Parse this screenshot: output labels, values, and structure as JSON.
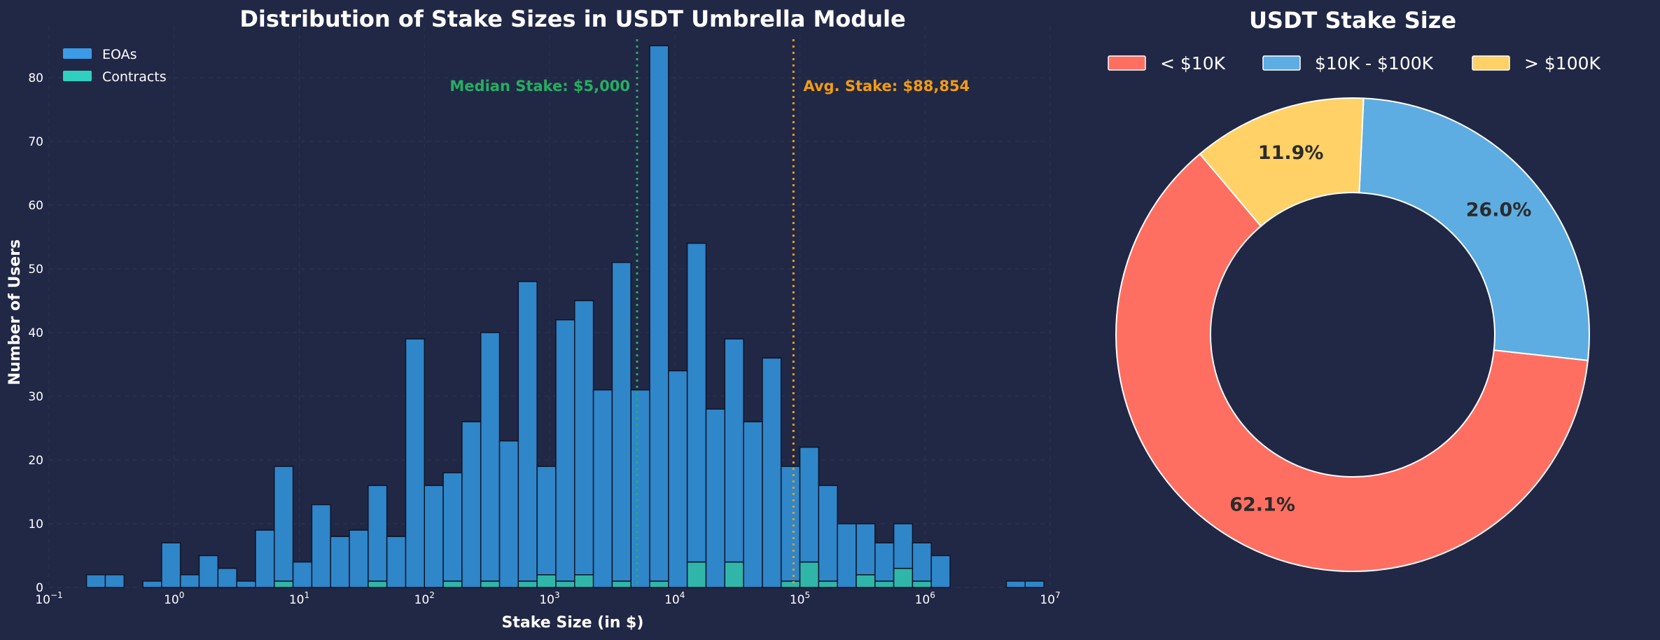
{
  "colors": {
    "background": "#212846",
    "eoa": "#2f86c9",
    "contract": "#2fb6a9",
    "bar_edge": "#0f1428",
    "median_line": "#27ae60",
    "avg_line": "#f39c12",
    "under_10k": "#ff6f61",
    "between_10k_100k": "#5dade2",
    "over_100k": "#ffd166",
    "pie_edge": "#ffffff"
  },
  "chart_data": [
    {
      "type": "bar",
      "title": "Distribution of Stake Sizes in USDT Umbrella Module",
      "xlabel": "Stake Size (in $)",
      "ylabel": "Number of Users",
      "x_scale": "log",
      "xlim": [
        0.1,
        10000000
      ],
      "ylim": [
        0,
        88
      ],
      "yticks": [
        0,
        10,
        20,
        30,
        40,
        50,
        60,
        70,
        80
      ],
      "xticks": [
        {
          "base": "10",
          "exp": "−1",
          "value": 0.1
        },
        {
          "base": "10",
          "exp": "0",
          "value": 1
        },
        {
          "base": "10",
          "exp": "1",
          "value": 10
        },
        {
          "base": "10",
          "exp": "2",
          "value": 100
        },
        {
          "base": "10",
          "exp": "3",
          "value": 1000
        },
        {
          "base": "10",
          "exp": "4",
          "value": 10000
        },
        {
          "base": "10",
          "exp": "5",
          "value": 100000
        },
        {
          "base": "10",
          "exp": "6",
          "value": 1000000
        },
        {
          "base": "10",
          "exp": "7",
          "value": 10000000
        }
      ],
      "legend": {
        "placement": "top-left",
        "entries": [
          "EOAs",
          "Contracts"
        ]
      },
      "grid": true,
      "stacked": true,
      "bin_log_start": -0.7,
      "bin_log_step": 0.15,
      "series": [
        {
          "name": "EOAs",
          "values": [
            2,
            2,
            0,
            1,
            7,
            2,
            5,
            3,
            1,
            9,
            18,
            4,
            13,
            8,
            9,
            15,
            8,
            39,
            16,
            17,
            26,
            39,
            23,
            47,
            17,
            41,
            43,
            31,
            50,
            31,
            84,
            34,
            50,
            28,
            35,
            26,
            36,
            18,
            18,
            15,
            10,
            8,
            6,
            7,
            6,
            5,
            0,
            0,
            0,
            1,
            1
          ]
        },
        {
          "name": "Contracts",
          "values": [
            0,
            0,
            0,
            0,
            0,
            0,
            0,
            0,
            0,
            0,
            1,
            0,
            0,
            0,
            0,
            1,
            0,
            0,
            0,
            1,
            0,
            1,
            0,
            1,
            2,
            1,
            2,
            0,
            1,
            0,
            1,
            0,
            4,
            0,
            4,
            0,
            0,
            1,
            4,
            1,
            0,
            2,
            1,
            3,
            1,
            0,
            0,
            0,
            0,
            0,
            0
          ]
        }
      ],
      "annotations": [
        {
          "label": "Median Stake: $5,000",
          "x": 5000
        },
        {
          "label": "Avg. Stake: $88,854",
          "x": 88854
        }
      ]
    },
    {
      "type": "pie",
      "title": "USDT Stake Size",
      "donut": true,
      "legend": {
        "placement": "top",
        "entries": [
          "< $10K",
          "$10K - $100K",
          "> $100K"
        ]
      },
      "slices": [
        {
          "label": "< $10K",
          "value": 62.1,
          "text": "62.1%"
        },
        {
          "label": "$10K - $100K",
          "value": 26.0,
          "text": "26.0%"
        },
        {
          "label": "> $100K",
          "value": 11.9,
          "text": "11.9%"
        }
      ]
    }
  ]
}
